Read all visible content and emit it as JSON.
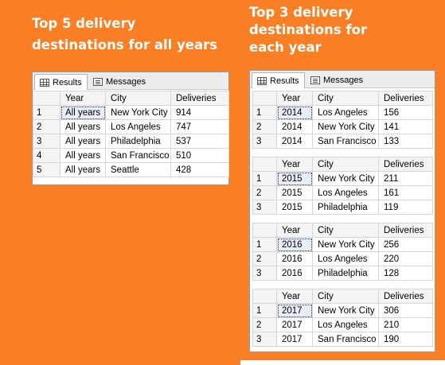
{
  "left": {
    "title_line1": "Top 5 delivery",
    "title_line2": "destinations for all years",
    "tabs": {
      "results": "Results",
      "messages": "Messages"
    },
    "columns": [
      "Year",
      "City",
      "Deliveries"
    ],
    "rows": [
      {
        "n": "1",
        "year": "All years",
        "city": "New York City",
        "deliveries": "914"
      },
      {
        "n": "2",
        "year": "All years",
        "city": "Los Angeles",
        "deliveries": "747"
      },
      {
        "n": "3",
        "year": "All years",
        "city": "Philadelphia",
        "deliveries": "537"
      },
      {
        "n": "4",
        "year": "All years",
        "city": "San Francisco",
        "deliveries": "510"
      },
      {
        "n": "5",
        "year": "All years",
        "city": "Seattle",
        "deliveries": "428"
      }
    ]
  },
  "right": {
    "title_line1": "Top 3 delivery",
    "title_line2": "destinations for",
    "title_line3": "each year",
    "tabs": {
      "results": "Results",
      "messages": "Messages"
    },
    "columns": [
      "Year",
      "City",
      "Deliveries"
    ],
    "grids": [
      {
        "rows": [
          {
            "n": "1",
            "year": "2014",
            "city": "Los Angeles",
            "deliveries": "156"
          },
          {
            "n": "2",
            "year": "2014",
            "city": "New York City",
            "deliveries": "141"
          },
          {
            "n": "3",
            "year": "2014",
            "city": "San Francisco",
            "deliveries": "133"
          }
        ]
      },
      {
        "rows": [
          {
            "n": "1",
            "year": "2015",
            "city": "New York City",
            "deliveries": "211"
          },
          {
            "n": "2",
            "year": "2015",
            "city": "Los Angeles",
            "deliveries": "161"
          },
          {
            "n": "3",
            "year": "2015",
            "city": "Philadelphia",
            "deliveries": "119"
          }
        ]
      },
      {
        "rows": [
          {
            "n": "1",
            "year": "2016",
            "city": "New York City",
            "deliveries": "256"
          },
          {
            "n": "2",
            "year": "2016",
            "city": "Los Angeles",
            "deliveries": "220"
          },
          {
            "n": "3",
            "year": "2016",
            "city": "Philadelphia",
            "deliveries": "128"
          }
        ]
      },
      {
        "rows": [
          {
            "n": "1",
            "year": "2017",
            "city": "New York City",
            "deliveries": "306"
          },
          {
            "n": "2",
            "year": "2017",
            "city": "Los Angeles",
            "deliveries": "210"
          },
          {
            "n": "3",
            "year": "2017",
            "city": "San Francisco",
            "deliveries": "190"
          }
        ]
      }
    ]
  },
  "colors": {
    "background": "#fa7e23",
    "title_text": "#ffffff"
  }
}
